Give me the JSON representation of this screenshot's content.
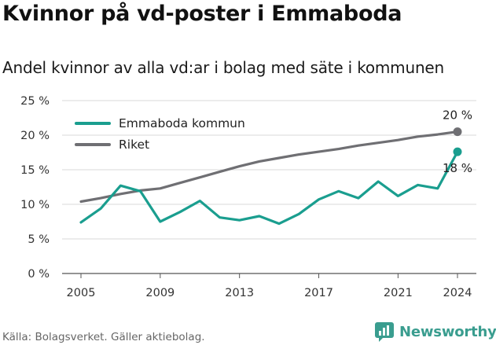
{
  "header": {
    "title": "Kvinnor på vd-poster i Emmaboda",
    "subtitle": "Andel kvinnor av alla vd:ar i bolag med säte i kommunen"
  },
  "chart_data": {
    "type": "line",
    "x": [
      2005,
      2006,
      2007,
      2008,
      2009,
      2010,
      2011,
      2012,
      2013,
      2014,
      2015,
      2016,
      2017,
      2018,
      2019,
      2020,
      2021,
      2022,
      2023,
      2024
    ],
    "series": [
      {
        "name": "Emmaboda kommun",
        "color": "#1a9e8f",
        "values": [
          7.4,
          9.4,
          12.7,
          11.9,
          7.5,
          8.9,
          10.5,
          8.1,
          7.7,
          8.3,
          7.2,
          8.6,
          10.7,
          11.9,
          10.9,
          13.3,
          11.2,
          12.8,
          12.3,
          17.6
        ],
        "end_label": "18 %"
      },
      {
        "name": "Riket",
        "color": "#6f6f73",
        "values": [
          10.4,
          10.9,
          11.5,
          12.0,
          12.3,
          13.1,
          13.9,
          14.7,
          15.5,
          16.2,
          16.7,
          17.2,
          17.6,
          18.0,
          18.5,
          18.9,
          19.3,
          19.8,
          20.1,
          20.5
        ],
        "end_label": "20 %"
      }
    ],
    "xticks": [
      2005,
      2009,
      2013,
      2017,
      2021,
      2024
    ],
    "yticks": [
      0,
      5,
      10,
      15,
      20,
      25
    ],
    "ytick_labels": [
      "0 %",
      "5 %",
      "10 %",
      "15 %",
      "20 %",
      "25 %"
    ],
    "ylim": [
      0,
      25
    ],
    "xlim": [
      2005,
      2024
    ],
    "grid": "horizontal",
    "legend_position": "top-left"
  },
  "footer": {
    "source": "Källa: Bolagsverket. Gäller aktiebolag.",
    "brand": "Newsworthy",
    "brand_color": "#3a9d8f"
  }
}
